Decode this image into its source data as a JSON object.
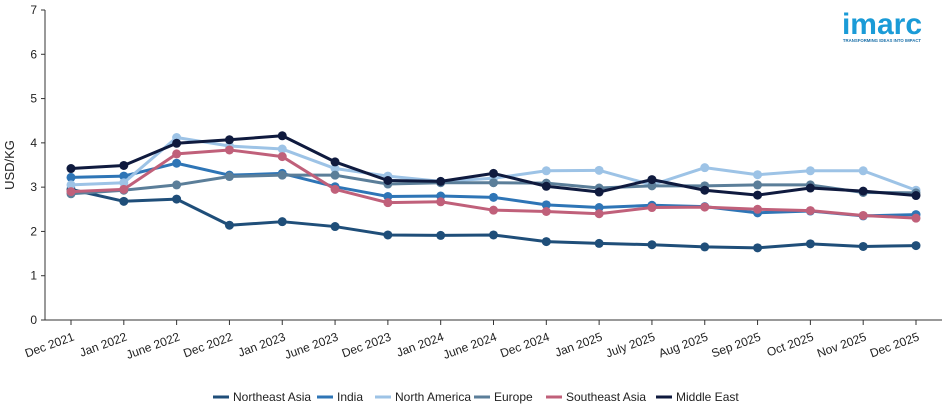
{
  "chart_data": {
    "type": "line",
    "title": "",
    "xlabel": "",
    "ylabel": "USD/KG",
    "ylim": [
      0,
      7
    ],
    "yticks": [
      "0",
      "1",
      "2",
      "3",
      "4",
      "5",
      "6",
      "7"
    ],
    "categories": [
      "Dec 2021",
      "Jan 2022",
      "June 2022",
      "Dec 2022",
      "Jan 2023",
      "June 2023",
      "Dec 2023",
      "Jan 2024",
      "June 2024",
      "Dec 2024",
      "Jan 2025",
      "July 2025",
      "Aug 2025",
      "Sep 2025",
      "Oct 2025",
      "Nov 2025",
      "Dec 2025"
    ],
    "legend_position": "bottom",
    "series": [
      {
        "name": "Northeast Asia",
        "color": "#1f4e79",
        "values": [
          2.95,
          2.68,
          2.73,
          2.14,
          2.22,
          2.11,
          1.92,
          1.91,
          1.92,
          1.77,
          1.73,
          1.7,
          1.65,
          1.63,
          1.72,
          1.66,
          1.68
        ]
      },
      {
        "name": "India",
        "color": "#2e75b6",
        "values": [
          3.22,
          3.25,
          3.54,
          3.27,
          3.31,
          3.01,
          2.79,
          2.8,
          2.77,
          2.6,
          2.54,
          2.59,
          2.56,
          2.42,
          2.46,
          2.35,
          2.38
        ]
      },
      {
        "name": "North America",
        "color": "#9dc3e6",
        "values": [
          3.05,
          3.1,
          4.12,
          3.93,
          3.86,
          3.42,
          3.25,
          3.13,
          3.2,
          3.37,
          3.38,
          3.05,
          3.44,
          3.28,
          3.37,
          3.37,
          2.93
        ]
      },
      {
        "name": "Europe",
        "color": "#5b7e99",
        "values": [
          2.85,
          2.93,
          3.05,
          3.24,
          3.27,
          3.27,
          3.07,
          3.1,
          3.1,
          3.09,
          2.98,
          3.03,
          3.03,
          3.05,
          3.05,
          2.88,
          2.87
        ]
      },
      {
        "name": "Southeast Asia",
        "color": "#c0607a",
        "values": [
          2.9,
          2.95,
          3.75,
          3.84,
          3.69,
          2.95,
          2.65,
          2.67,
          2.48,
          2.45,
          2.4,
          2.54,
          2.55,
          2.5,
          2.47,
          2.36,
          2.3
        ]
      },
      {
        "name": "Middle East",
        "color": "#0f1a3e",
        "values": [
          3.42,
          3.49,
          3.99,
          4.07,
          4.16,
          3.57,
          3.15,
          3.13,
          3.31,
          3.02,
          2.89,
          3.17,
          2.93,
          2.82,
          2.98,
          2.91,
          2.81
        ]
      }
    ]
  },
  "logo": {
    "name": "imarc",
    "tagline": "TRANSFORMING IDEAS INTO IMPACT"
  }
}
